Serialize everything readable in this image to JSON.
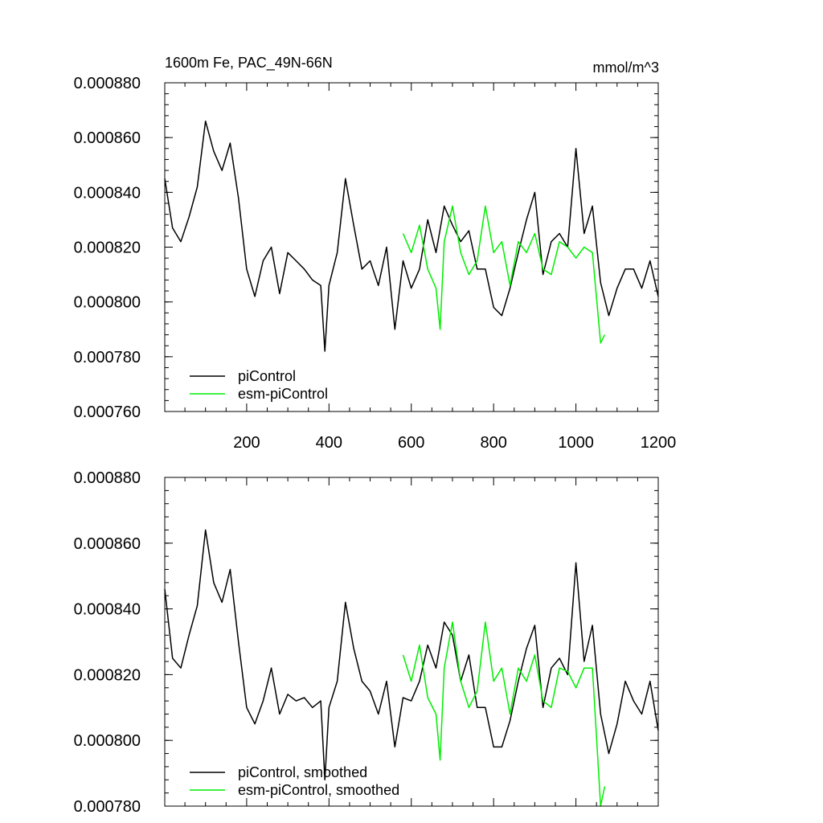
{
  "colors": {
    "piControl": "#000000",
    "esm_piControl": "#00ee00",
    "axis": "#000000",
    "background": "#ffffff"
  },
  "chart_data": [
    {
      "type": "line",
      "title": "1600m Fe, PAC_49N-66N",
      "units": "mmol/m^3",
      "xlim": [
        1,
        1200
      ],
      "ylim": [
        0.00076,
        0.00088
      ],
      "xticks": [
        200,
        400,
        600,
        800,
        1000,
        1200
      ],
      "xtick_labels": [
        "200",
        "400",
        "600",
        "800",
        "1000",
        "1200"
      ],
      "yticks": [
        0.00076,
        0.00078,
        0.0008,
        0.00082,
        0.00084,
        0.00086,
        0.00088
      ],
      "ytick_labels": [
        "0.000760",
        "0.000780",
        "0.000800",
        "0.000820",
        "0.000840",
        "0.000860",
        "0.000880"
      ],
      "legend_placement": "bottom-left",
      "series": [
        {
          "name": "piControl",
          "color": "#000000",
          "x": [
            1,
            20,
            40,
            60,
            80,
            100,
            120,
            140,
            160,
            180,
            200,
            220,
            240,
            260,
            280,
            300,
            320,
            340,
            360,
            380,
            390,
            400,
            420,
            440,
            460,
            480,
            500,
            520,
            540,
            560,
            580,
            600,
            620,
            640,
            660,
            680,
            700,
            720,
            740,
            760,
            780,
            800,
            820,
            840,
            860,
            880,
            900,
            920,
            940,
            960,
            980,
            1000,
            1020,
            1040,
            1060,
            1080,
            1100,
            1120,
            1140,
            1160,
            1180,
            1200
          ],
          "y": [
            0.000845,
            0.000827,
            0.000822,
            0.000831,
            0.000842,
            0.000866,
            0.000855,
            0.000848,
            0.000858,
            0.000838,
            0.000812,
            0.000802,
            0.000815,
            0.00082,
            0.000803,
            0.000818,
            0.000815,
            0.000812,
            0.000808,
            0.000806,
            0.000782,
            0.000806,
            0.000818,
            0.000845,
            0.000828,
            0.000812,
            0.000815,
            0.000806,
            0.00082,
            0.00079,
            0.000815,
            0.000805,
            0.000812,
            0.00083,
            0.000818,
            0.000835,
            0.000828,
            0.000822,
            0.000826,
            0.000812,
            0.000812,
            0.000798,
            0.000795,
            0.000805,
            0.000818,
            0.00083,
            0.00084,
            0.00081,
            0.000822,
            0.000825,
            0.00082,
            0.000856,
            0.000825,
            0.000835,
            0.000807,
            0.000795,
            0.000805,
            0.000812,
            0.000812,
            0.000805,
            0.000815,
            0.000802
          ]
        },
        {
          "name": "esm-piControl",
          "color": "#00ee00",
          "x": [
            580,
            600,
            620,
            640,
            660,
            670,
            680,
            700,
            720,
            740,
            760,
            780,
            800,
            820,
            840,
            860,
            880,
            900,
            920,
            940,
            960,
            980,
            1000,
            1020,
            1040,
            1060,
            1070
          ],
          "y": [
            0.000825,
            0.000818,
            0.000828,
            0.000812,
            0.000805,
            0.00079,
            0.000822,
            0.000835,
            0.000818,
            0.00081,
            0.000815,
            0.000835,
            0.000818,
            0.000822,
            0.000806,
            0.000822,
            0.000818,
            0.000825,
            0.000812,
            0.00081,
            0.000822,
            0.00082,
            0.000816,
            0.00082,
            0.000818,
            0.000785,
            0.000788
          ]
        }
      ]
    },
    {
      "type": "line",
      "xlim": [
        1,
        1200
      ],
      "ylim": [
        0.00078,
        0.00088
      ],
      "xticks": [
        200,
        400,
        600,
        800,
        1000,
        1200
      ],
      "yticks": [
        0.00078,
        0.0008,
        0.00082,
        0.00084,
        0.00086,
        0.00088
      ],
      "ytick_labels": [
        "0.000780",
        "0.000800",
        "0.000820",
        "0.000840",
        "0.000860",
        "0.000880"
      ],
      "legend_placement": "bottom-left",
      "series": [
        {
          "name": "piControl, smoothed",
          "color": "#000000",
          "x": [
            1,
            20,
            40,
            60,
            80,
            100,
            120,
            140,
            160,
            180,
            200,
            220,
            240,
            260,
            280,
            300,
            320,
            340,
            360,
            380,
            390,
            400,
            420,
            440,
            460,
            480,
            500,
            520,
            540,
            560,
            580,
            600,
            620,
            640,
            660,
            680,
            700,
            720,
            740,
            760,
            780,
            800,
            820,
            840,
            860,
            880,
            900,
            920,
            940,
            960,
            980,
            1000,
            1020,
            1040,
            1060,
            1080,
            1100,
            1120,
            1140,
            1160,
            1180,
            1200
          ],
          "y": [
            0.000846,
            0.000825,
            0.000822,
            0.000832,
            0.000841,
            0.000864,
            0.000848,
            0.000842,
            0.000852,
            0.00083,
            0.00081,
            0.000805,
            0.000812,
            0.000822,
            0.000808,
            0.000814,
            0.000812,
            0.000813,
            0.00081,
            0.000812,
            0.000788,
            0.00081,
            0.000818,
            0.000842,
            0.000828,
            0.000818,
            0.000815,
            0.000808,
            0.000818,
            0.000798,
            0.000813,
            0.000812,
            0.000818,
            0.000829,
            0.000822,
            0.000836,
            0.000832,
            0.000818,
            0.000826,
            0.00081,
            0.00081,
            0.000798,
            0.000798,
            0.000806,
            0.000818,
            0.000828,
            0.000835,
            0.00081,
            0.000822,
            0.000825,
            0.00082,
            0.000854,
            0.000824,
            0.000835,
            0.000808,
            0.000796,
            0.000805,
            0.000818,
            0.000812,
            0.000808,
            0.000818,
            0.000803
          ]
        },
        {
          "name": "esm-piControl, smoothed",
          "color": "#00ee00",
          "x": [
            580,
            600,
            620,
            640,
            660,
            670,
            680,
            700,
            720,
            740,
            760,
            780,
            800,
            820,
            840,
            860,
            880,
            900,
            920,
            940,
            960,
            980,
            1000,
            1020,
            1040,
            1060,
            1070
          ],
          "y": [
            0.000826,
            0.000818,
            0.000829,
            0.000813,
            0.000808,
            0.000794,
            0.000822,
            0.000836,
            0.000818,
            0.00081,
            0.000815,
            0.000836,
            0.000818,
            0.000822,
            0.000808,
            0.000822,
            0.000818,
            0.000826,
            0.000812,
            0.00081,
            0.000822,
            0.000821,
            0.000816,
            0.000822,
            0.000822,
            0.00078,
            0.000786
          ]
        }
      ]
    }
  ]
}
